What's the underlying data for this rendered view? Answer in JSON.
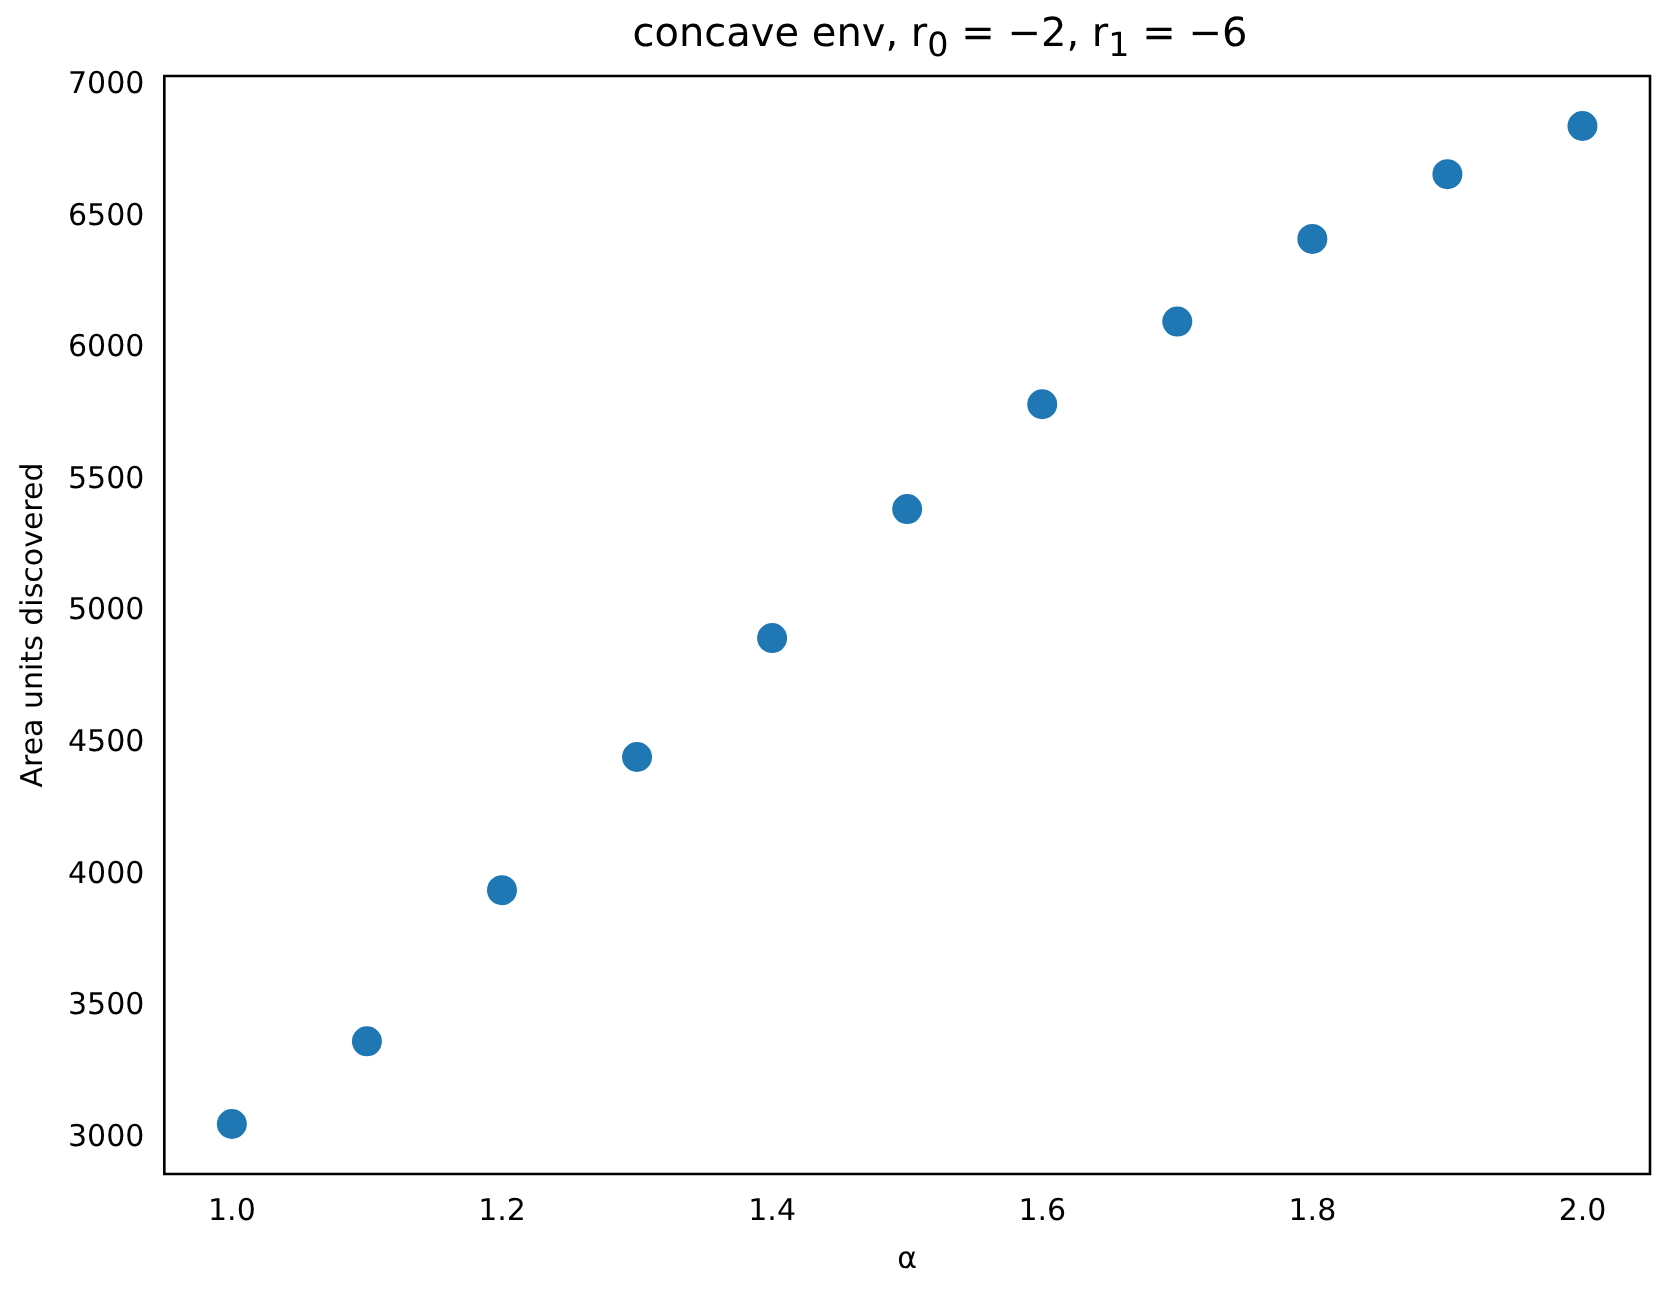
{
  "chart_data": {
    "type": "scatter",
    "title": "concave env, r$_{0}$ = −2, r$_{1}$ = −6",
    "xlabel": "α",
    "ylabel": "Area units discovered",
    "x": [
      1.0,
      1.1,
      1.2,
      1.3,
      1.4,
      1.5,
      1.6,
      1.7,
      1.8,
      1.9,
      2.0
    ],
    "series": [
      {
        "color": "#1f77b4",
        "values": [
          3054,
          3368,
          3942,
          4448,
          4900,
          5390,
          5788,
          6102,
          6416,
          6662,
          6845
        ]
      }
    ],
    "xlim": [
      0.95,
      2.05
    ],
    "xticks": [
      {
        "value": 1,
        "label": "1.0"
      },
      {
        "value": 1.2,
        "label": "1.2"
      },
      {
        "value": 1.4,
        "label": "1.4"
      },
      {
        "value": 1.6,
        "label": "1.6"
      },
      {
        "value": 1.8,
        "label": "1.8"
      },
      {
        "value": 2,
        "label": "2.0"
      }
    ],
    "ylim": [
      2864,
      7035
    ],
    "yticks": [
      3000,
      3500,
      4000,
      4500,
      5000,
      5500,
      6000,
      6500,
      7000
    ],
    "grid": false,
    "legend": false,
    "marker": "circle"
  }
}
